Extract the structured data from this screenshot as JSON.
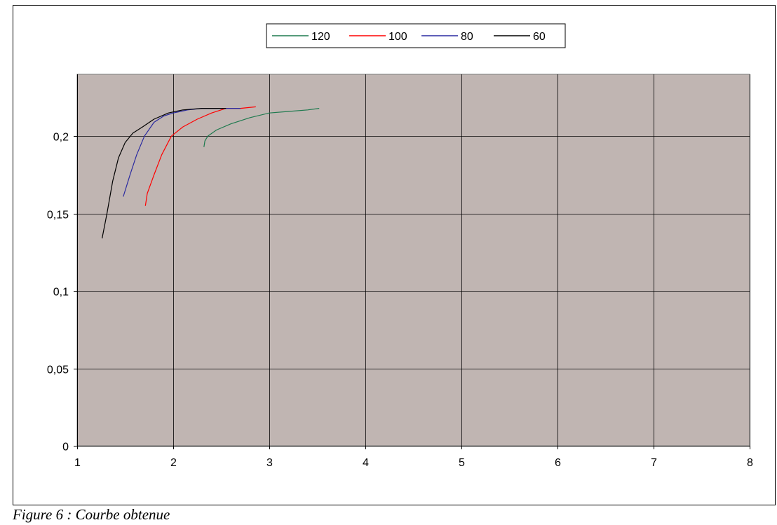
{
  "caption": "Figure 6 : Courbe obtenue",
  "colors": {
    "plot_background": "#c0b5b2",
    "gridline": "#000000",
    "120": "#1f7a4f",
    "100": "#ff0000",
    "80": "#2a2aa0",
    "60": "#000000"
  },
  "chart_data": {
    "type": "line",
    "title": "",
    "xlabel": "",
    "ylabel": "",
    "xlim": [
      1,
      8
    ],
    "ylim": [
      0,
      0.24
    ],
    "x_ticks": [
      1,
      2,
      3,
      4,
      5,
      6,
      7,
      8
    ],
    "x_tick_labels": [
      "1",
      "2",
      "3",
      "4",
      "5",
      "6",
      "7",
      "8"
    ],
    "y_ticks": [
      0,
      0.05,
      0.1,
      0.15,
      0.2
    ],
    "y_tick_labels": [
      "0",
      "0,05",
      "0,1",
      "0,15",
      "0,2"
    ],
    "grid": true,
    "legend_position": "top-center",
    "series": [
      {
        "name": "120",
        "color": "#1f7a4f",
        "points": [
          [
            2.32,
            0.193
          ],
          [
            2.33,
            0.197
          ],
          [
            2.36,
            0.2
          ],
          [
            2.45,
            0.204
          ],
          [
            2.6,
            0.208
          ],
          [
            2.8,
            0.212
          ],
          [
            3.0,
            0.215
          ],
          [
            3.2,
            0.216
          ],
          [
            3.4,
            0.217
          ],
          [
            3.52,
            0.218
          ]
        ]
      },
      {
        "name": "100",
        "color": "#ff0000",
        "points": [
          [
            1.71,
            0.155
          ],
          [
            1.73,
            0.163
          ],
          [
            1.8,
            0.175
          ],
          [
            1.88,
            0.188
          ],
          [
            1.98,
            0.2
          ],
          [
            2.1,
            0.206
          ],
          [
            2.25,
            0.211
          ],
          [
            2.4,
            0.215
          ],
          [
            2.55,
            0.218
          ],
          [
            2.7,
            0.218
          ],
          [
            2.86,
            0.219
          ]
        ]
      },
      {
        "name": "80",
        "color": "#2a2aa0",
        "points": [
          [
            1.48,
            0.161
          ],
          [
            1.55,
            0.175
          ],
          [
            1.62,
            0.188
          ],
          [
            1.7,
            0.2
          ],
          [
            1.8,
            0.209
          ],
          [
            1.9,
            0.213
          ],
          [
            2.0,
            0.215
          ],
          [
            2.15,
            0.217
          ],
          [
            2.3,
            0.218
          ],
          [
            2.5,
            0.218
          ],
          [
            2.7,
            0.218
          ]
        ]
      },
      {
        "name": "60",
        "color": "#000000",
        "points": [
          [
            1.26,
            0.134
          ],
          [
            1.31,
            0.15
          ],
          [
            1.37,
            0.171
          ],
          [
            1.43,
            0.186
          ],
          [
            1.5,
            0.196
          ],
          [
            1.58,
            0.202
          ],
          [
            1.68,
            0.206
          ],
          [
            1.8,
            0.211
          ],
          [
            1.95,
            0.215
          ],
          [
            2.1,
            0.217
          ],
          [
            2.3,
            0.218
          ],
          [
            2.55,
            0.218
          ]
        ]
      }
    ]
  }
}
